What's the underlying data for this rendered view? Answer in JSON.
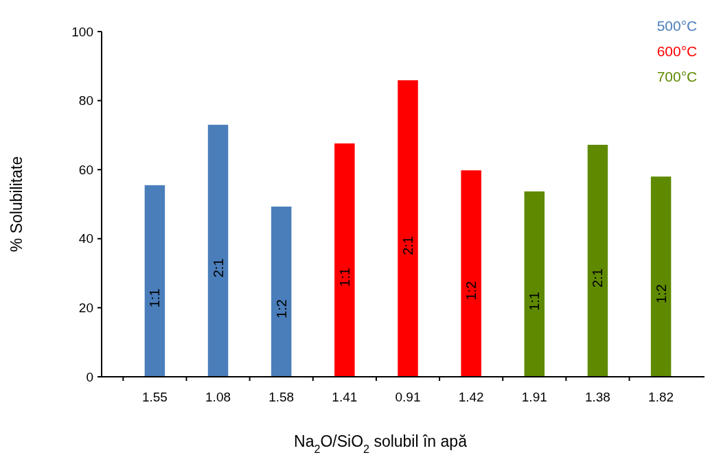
{
  "chart_data": {
    "type": "bar",
    "xlabel": "Na$_{2}$O/SiO$_{2}$ solubil în apă",
    "ylabel": "% Solubilitate",
    "categories": [
      "1.55",
      "1.08",
      "1.58",
      "1.41",
      "0.91",
      "1.42",
      "1.91",
      "1.38",
      "1.82"
    ],
    "series": [
      {
        "name": "500°C",
        "color": "#4a7ebb",
        "values": [
          55.5,
          73,
          49.3,
          null,
          null,
          null,
          null,
          null,
          null
        ]
      },
      {
        "name": "600°C",
        "color": "#ff0000",
        "values": [
          null,
          null,
          null,
          67.6,
          85.9,
          59.8,
          null,
          null,
          null
        ]
      },
      {
        "name": "700°C",
        "color": "#5f8a00",
        "values": [
          null,
          null,
          null,
          null,
          null,
          null,
          53.7,
          67.2,
          58
        ]
      }
    ],
    "ylim": [
      0,
      100
    ],
    "yticks": [
      0,
      20,
      40,
      60,
      80,
      100
    ],
    "grid": false,
    "legend": "top right",
    "annotations": [
      "1:1",
      "2:1",
      "1:2",
      "1:1",
      "2:1",
      "1:2",
      "1:1",
      "2:1",
      "1:2"
    ]
  }
}
